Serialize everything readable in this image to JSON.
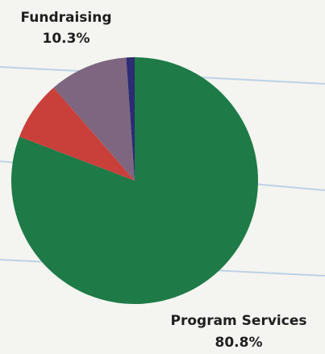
{
  "chart_data": {
    "type": "pie",
    "slices": [
      {
        "label": "Program Services",
        "value": 80.8,
        "display": "80.8%",
        "color": "#1e7a46"
      },
      {
        "label": "",
        "value": 7.8,
        "display": "",
        "color": "#c9403a"
      },
      {
        "label": "Fundraising",
        "value": 10.3,
        "display": "10.3%",
        "color": "#7e6580"
      },
      {
        "label": "",
        "value": 1.1,
        "display": "",
        "color": "#2c2c74"
      }
    ]
  }
}
